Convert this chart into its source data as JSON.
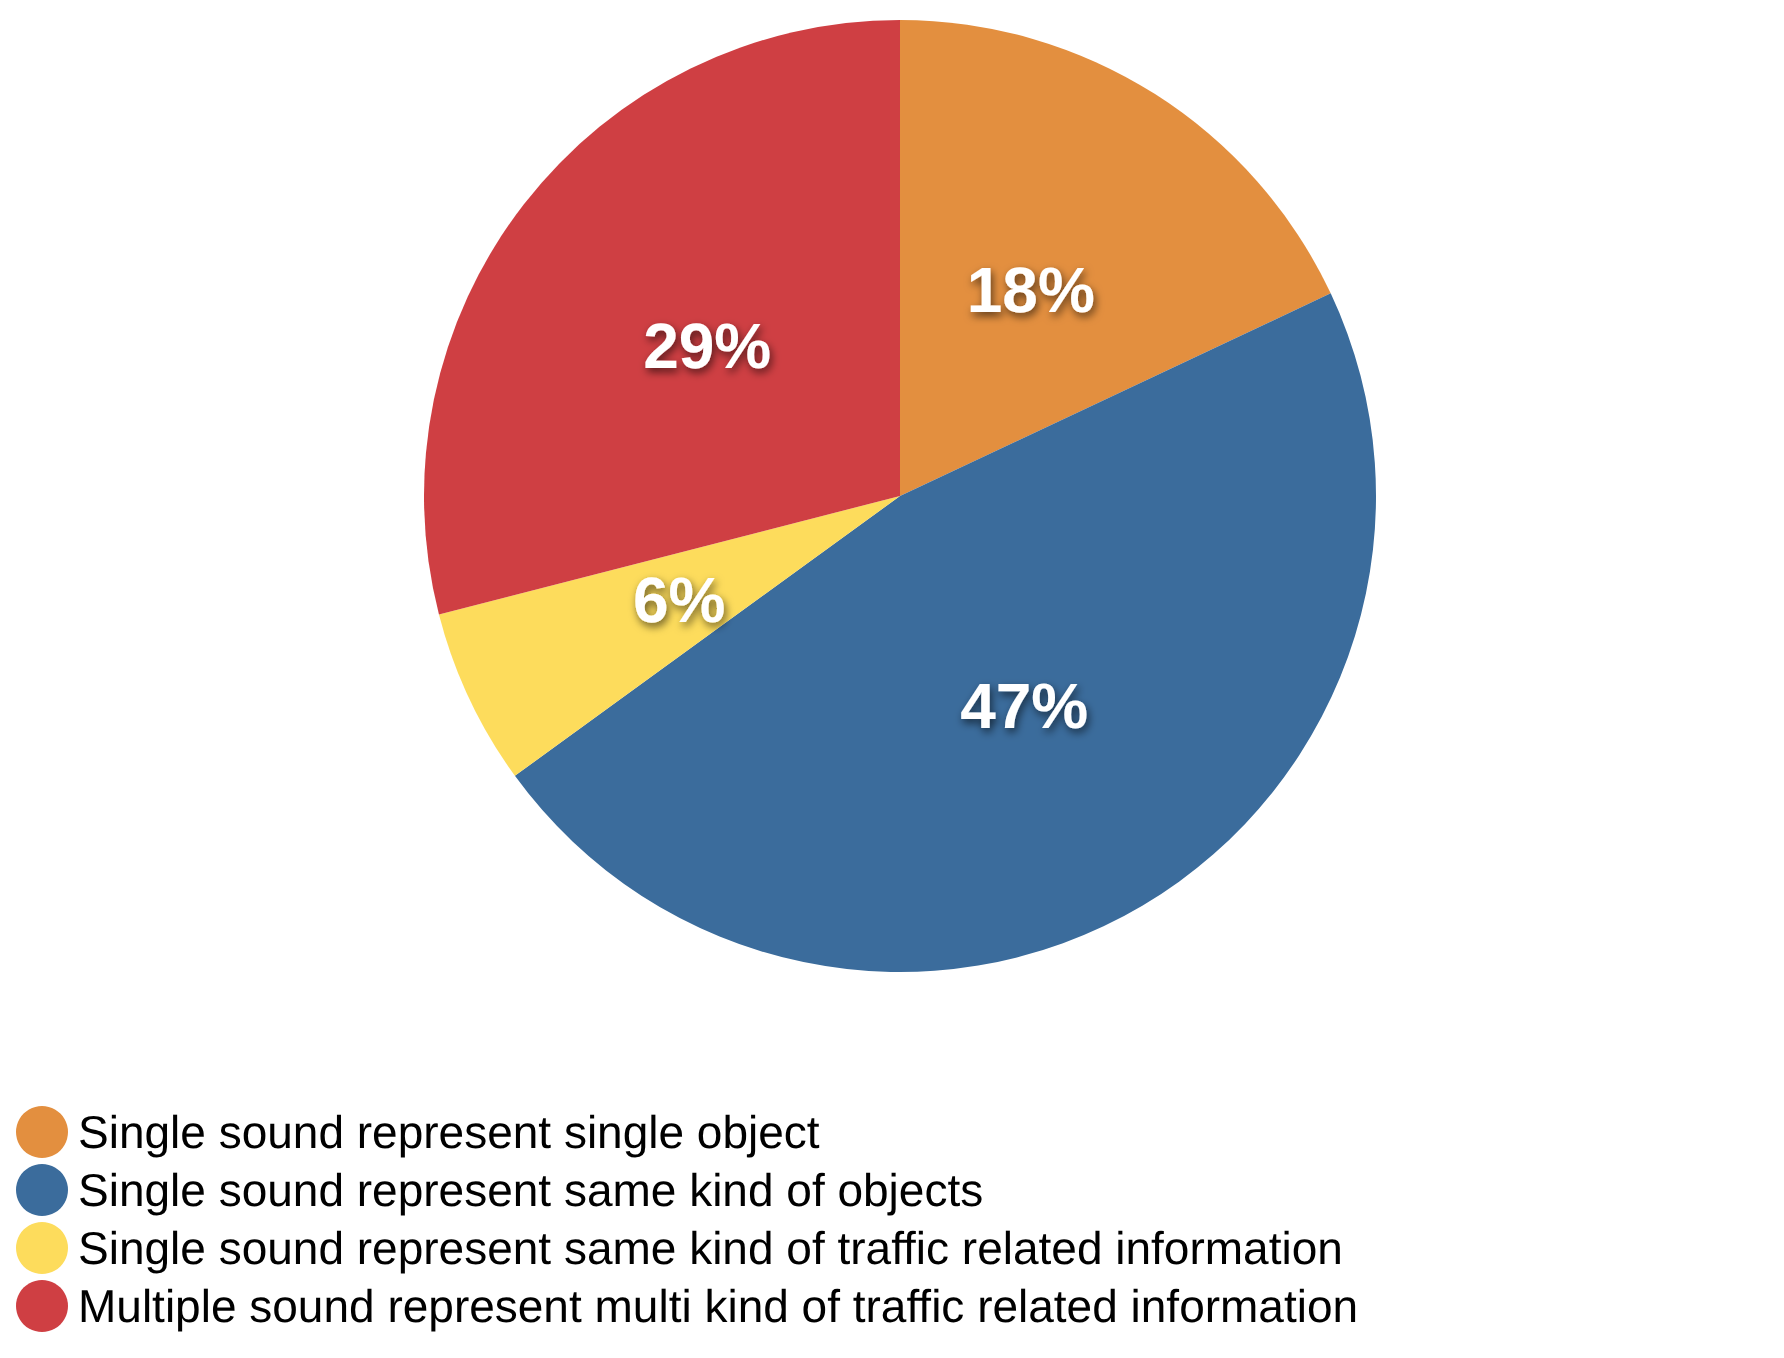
{
  "chart_data": {
    "type": "pie",
    "categories": [
      "Single sound represent single object",
      "Single sound represent same kind of objects",
      "Single sound represent same kind of traffic related information",
      "Multiple sound represent multi kind of traffic related information"
    ],
    "values": [
      18,
      47,
      6,
      29
    ],
    "colors": [
      "#e38f3f",
      "#3b6c9c",
      "#fddc5c",
      "#cf3f43"
    ],
    "value_labels": [
      "18%",
      "47%",
      "6%",
      "29%"
    ],
    "legend": "bottom left"
  }
}
